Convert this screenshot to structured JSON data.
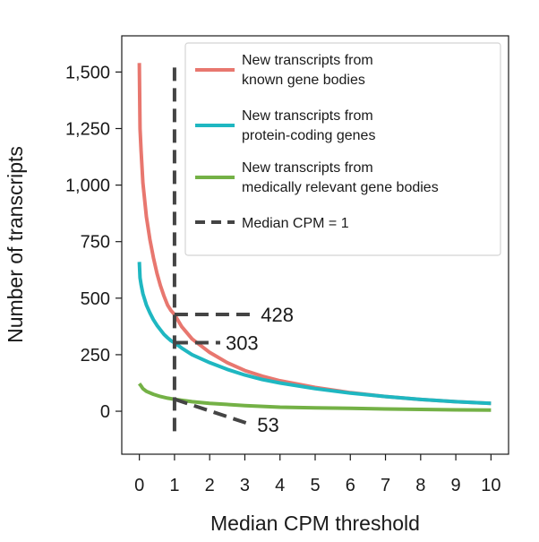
{
  "chart_data": {
    "type": "line",
    "xlabel": "Median CPM threshold",
    "ylabel": "Number of transcripts",
    "xlim": [
      -0.5,
      10.5
    ],
    "ylim": [
      -190,
      1660
    ],
    "x_ticks": [
      0,
      1,
      2,
      3,
      4,
      5,
      6,
      7,
      8,
      9,
      10
    ],
    "x_tick_labels": [
      "0",
      "1",
      "2",
      "3",
      "4",
      "5",
      "6",
      "7",
      "8",
      "9",
      "10"
    ],
    "y_ticks": [
      0,
      250,
      500,
      750,
      1000,
      1250,
      1500
    ],
    "y_tick_labels": [
      "0",
      "250",
      "500",
      "750",
      "1,000",
      "1,250",
      "1,500"
    ],
    "grid": false,
    "legend_position": "top-right",
    "series": [
      {
        "name": "New transcripts from known gene bodies",
        "color": "#e8776f",
        "x": [
          0,
          0.02,
          0.05,
          0.1,
          0.2,
          0.3,
          0.4,
          0.5,
          0.6,
          0.7,
          0.8,
          0.9,
          1.0,
          1.2,
          1.5,
          2.0,
          2.5,
          3.0,
          3.5,
          4.0,
          5.0,
          6.0,
          7.0,
          8.0,
          9.0,
          10.0
        ],
        "y": [
          1540,
          1250,
          1150,
          1010,
          860,
          760,
          680,
          610,
          555,
          510,
          470,
          445,
          428,
          375,
          320,
          260,
          215,
          180,
          155,
          135,
          105,
          82,
          65,
          52,
          42,
          35
        ]
      },
      {
        "name": "New transcripts from protein-coding genes",
        "color": "#1fb7c1",
        "x": [
          0,
          0.02,
          0.05,
          0.1,
          0.2,
          0.3,
          0.4,
          0.5,
          0.6,
          0.7,
          0.8,
          0.9,
          1.0,
          1.2,
          1.5,
          2.0,
          2.5,
          3.0,
          3.5,
          4.0,
          5.0,
          6.0,
          7.0,
          8.0,
          9.0,
          10.0
        ],
        "y": [
          660,
          590,
          560,
          520,
          470,
          435,
          405,
          380,
          360,
          340,
          325,
          312,
          303,
          280,
          250,
          215,
          185,
          160,
          140,
          125,
          100,
          80,
          65,
          52,
          42,
          35
        ]
      },
      {
        "name": "New transcripts from medically relevant gene bodies",
        "color": "#74b146",
        "x": [
          0,
          0.05,
          0.1,
          0.2,
          0.4,
          0.6,
          0.8,
          1.0,
          1.5,
          2.0,
          3.0,
          4.0,
          5.0,
          6.0,
          7.0,
          8.0,
          9.0,
          10.0
        ],
        "y": [
          122,
          112,
          100,
          88,
          75,
          65,
          58,
          53,
          42,
          35,
          25,
          18,
          15,
          13,
          10,
          8,
          6,
          5
        ]
      }
    ],
    "reference_line": {
      "name": "Median CPM = 1",
      "x": 1,
      "color": "#444444"
    },
    "annotations": [
      {
        "label": "428",
        "value": 428,
        "x_from": 1,
        "x_to": 3.3,
        "y_to": 428
      },
      {
        "label": "303",
        "value": 303,
        "x_from": 1,
        "x_to": 2.3,
        "y_to": 303
      },
      {
        "label": "53",
        "value": 53,
        "x_from": 1,
        "x_to": 3.2,
        "y_to": -60
      }
    ]
  }
}
